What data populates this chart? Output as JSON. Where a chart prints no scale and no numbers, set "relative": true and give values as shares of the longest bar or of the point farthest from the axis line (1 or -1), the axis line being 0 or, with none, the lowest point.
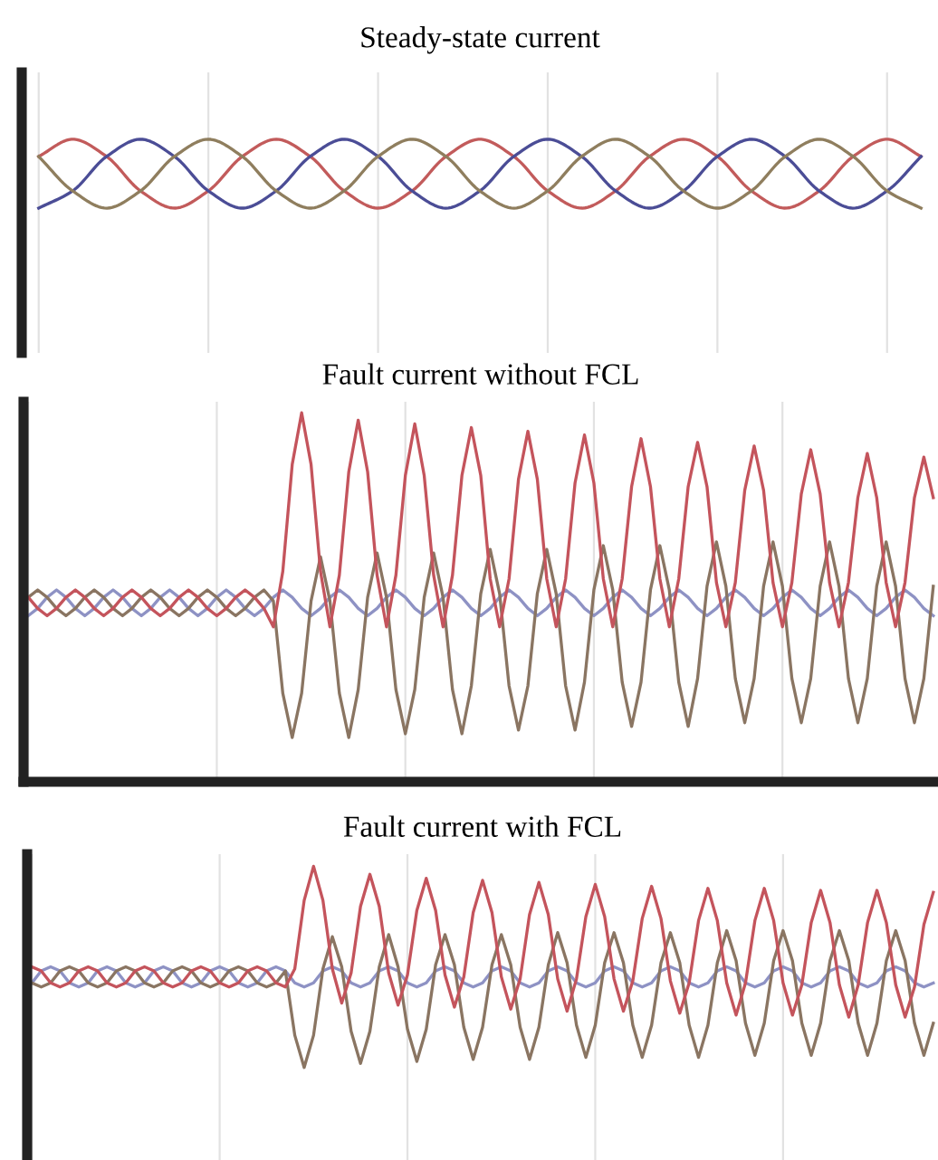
{
  "chart_data": [
    {
      "type": "line",
      "title": "Steady-state current",
      "relative": true,
      "grid": true,
      "tick_labels": false,
      "categories": [
        null,
        null,
        null,
        null,
        null,
        null,
        null,
        null,
        null,
        null,
        null,
        null,
        null,
        null,
        null,
        null,
        null,
        null,
        null,
        null,
        null,
        null,
        null,
        null,
        null,
        null,
        null
      ],
      "series": [
        {
          "color": "#c25b5b",
          "values": [
            0.75,
            1,
            0.75,
            0.25,
            0,
            0.25,
            0.75,
            1,
            0.75,
            0.25,
            0,
            0.25,
            0.75,
            1,
            0.75,
            0.25,
            0,
            0.25,
            0.75,
            1,
            0.75,
            0.25,
            0,
            0.25,
            0.75,
            1,
            0.75
          ]
        },
        {
          "color": "#4b4d96",
          "values": [
            0,
            0.25,
            0.75,
            1,
            0.75,
            0.25,
            0,
            0.25,
            0.75,
            1,
            0.75,
            0.25,
            0,
            0.25,
            0.75,
            1,
            0.75,
            0.25,
            0,
            0.25,
            0.75,
            1,
            0.75,
            0.25,
            0,
            0.25,
            0.75
          ]
        },
        {
          "color": "#8f7e5e",
          "values": [
            0.75,
            0.25,
            0,
            0.25,
            0.75,
            1,
            0.75,
            0.25,
            0,
            0.25,
            0.75,
            1,
            0.75,
            0.25,
            0,
            0.25,
            0.75,
            1,
            0.75,
            0.25,
            0,
            0.25,
            0.75,
            1,
            0.75,
            0.25,
            0
          ]
        }
      ]
    },
    {
      "type": "line",
      "title": "Fault current without FCL",
      "relative": true,
      "grid": true,
      "tick_labels": false,
      "categories": [
        null,
        null,
        null,
        null,
        null,
        null,
        null,
        null,
        null,
        null,
        null,
        null,
        null,
        null,
        null,
        null,
        null,
        null,
        null,
        null,
        null,
        null,
        null,
        null,
        null,
        null,
        null,
        null,
        null,
        null,
        null,
        null,
        null,
        null,
        null,
        null,
        null,
        null,
        null,
        null,
        null,
        null,
        null,
        null,
        null,
        null,
        null,
        null,
        null,
        null,
        null,
        null,
        null,
        null,
        null,
        null,
        null,
        null,
        null,
        null,
        null,
        null,
        null,
        null,
        null,
        null,
        null,
        null,
        null,
        null,
        null,
        null,
        null,
        null,
        null,
        null,
        null,
        null,
        null,
        null,
        null,
        null,
        null,
        null,
        null,
        null,
        null,
        null,
        null,
        null,
        null,
        null,
        null,
        null,
        null,
        null,
        null
      ],
      "series": [
        {
          "color": "#8e92c4",
          "values": [
            0.45,
            0.47,
            0.5,
            0.52,
            0.5,
            0.47,
            0.45,
            0.47,
            0.5,
            0.52,
            0.5,
            0.47,
            0.45,
            0.47,
            0.5,
            0.52,
            0.5,
            0.47,
            0.45,
            0.47,
            0.5,
            0.52,
            0.5,
            0.47,
            0.45,
            0.47,
            0.5,
            0.52,
            0.5,
            0.47,
            0.45,
            0.47,
            0.5,
            0.52,
            0.5,
            0.47,
            0.45,
            0.47,
            0.5,
            0.52,
            0.5,
            0.47,
            0.45,
            0.47,
            0.5,
            0.52,
            0.5,
            0.47,
            0.45,
            0.47,
            0.5,
            0.52,
            0.5,
            0.47,
            0.45,
            0.47,
            0.5,
            0.52,
            0.5,
            0.47,
            0.45,
            0.47,
            0.5,
            0.52,
            0.5,
            0.47,
            0.45,
            0.47,
            0.5,
            0.52,
            0.5,
            0.47,
            0.45,
            0.47,
            0.5,
            0.52,
            0.5,
            0.47,
            0.45,
            0.47,
            0.5,
            0.52,
            0.5,
            0.47,
            0.45,
            0.47,
            0.5,
            0.52,
            0.5,
            0.47,
            0.45,
            0.47,
            0.5,
            0.52,
            0.5,
            0.47,
            0.45
          ]
        },
        {
          "color": "#8a7562",
          "values": [
            0.5,
            0.52,
            0.5,
            0.47,
            0.45,
            0.47,
            0.5,
            0.52,
            0.5,
            0.47,
            0.45,
            0.47,
            0.5,
            0.52,
            0.5,
            0.47,
            0.45,
            0.47,
            0.5,
            0.52,
            0.5,
            0.47,
            0.45,
            0.47,
            0.5,
            0.52,
            0.49,
            0.24,
            0.12,
            0.24,
            0.49,
            0.61,
            0.49,
            0.24,
            0.12,
            0.25,
            0.5,
            0.62,
            0.5,
            0.25,
            0.13,
            0.25,
            0.5,
            0.62,
            0.5,
            0.25,
            0.13,
            0.26,
            0.51,
            0.63,
            0.51,
            0.26,
            0.14,
            0.26,
            0.51,
            0.63,
            0.51,
            0.26,
            0.14,
            0.27,
            0.52,
            0.64,
            0.52,
            0.27,
            0.15,
            0.27,
            0.52,
            0.64,
            0.52,
            0.27,
            0.15,
            0.28,
            0.53,
            0.65,
            0.53,
            0.28,
            0.16,
            0.28,
            0.53,
            0.65,
            0.53,
            0.28,
            0.16,
            0.28,
            0.53,
            0.65,
            0.53,
            0.28,
            0.16,
            0.28,
            0.53,
            0.65,
            0.53,
            0.28,
            0.16,
            0.28,
            0.53
          ]
        },
        {
          "color": "#c4545c",
          "values": [
            0.5,
            0.47,
            0.45,
            0.47,
            0.5,
            0.52,
            0.5,
            0.47,
            0.45,
            0.47,
            0.5,
            0.52,
            0.5,
            0.47,
            0.45,
            0.47,
            0.5,
            0.52,
            0.5,
            0.47,
            0.45,
            0.47,
            0.5,
            0.52,
            0.5,
            0.47,
            0.42,
            0.57,
            0.86,
            1.0,
            0.86,
            0.57,
            0.42,
            0.56,
            0.84,
            0.98,
            0.84,
            0.56,
            0.42,
            0.56,
            0.83,
            0.97,
            0.83,
            0.56,
            0.42,
            0.56,
            0.83,
            0.96,
            0.83,
            0.55,
            0.42,
            0.55,
            0.82,
            0.95,
            0.82,
            0.55,
            0.42,
            0.55,
            0.81,
            0.94,
            0.81,
            0.55,
            0.42,
            0.55,
            0.8,
            0.93,
            0.8,
            0.55,
            0.42,
            0.55,
            0.8,
            0.92,
            0.8,
            0.54,
            0.42,
            0.54,
            0.79,
            0.91,
            0.79,
            0.54,
            0.42,
            0.54,
            0.78,
            0.9,
            0.78,
            0.54,
            0.42,
            0.54,
            0.77,
            0.89,
            0.77,
            0.54,
            0.42,
            0.54,
            0.77,
            0.88,
            0.77
          ]
        }
      ]
    },
    {
      "type": "line",
      "title": "Fault current with FCL",
      "relative": true,
      "grid": true,
      "tick_labels": false,
      "categories": [
        null,
        null,
        null,
        null,
        null,
        null,
        null,
        null,
        null,
        null,
        null,
        null,
        null,
        null,
        null,
        null,
        null,
        null,
        null,
        null,
        null,
        null,
        null,
        null,
        null,
        null,
        null,
        null,
        null,
        null,
        null,
        null,
        null,
        null,
        null,
        null,
        null,
        null,
        null,
        null,
        null,
        null,
        null,
        null,
        null,
        null,
        null,
        null,
        null,
        null,
        null,
        null,
        null,
        null,
        null,
        null,
        null,
        null,
        null,
        null,
        null,
        null,
        null,
        null,
        null,
        null,
        null,
        null,
        null,
        null,
        null,
        null,
        null,
        null,
        null,
        null,
        null,
        null,
        null,
        null,
        null,
        null,
        null,
        null,
        null,
        null,
        null,
        null,
        null,
        null,
        null,
        null,
        null,
        null,
        null,
        null,
        null
      ],
      "series": [
        {
          "color": "#8e92c4",
          "values": [
            0.42,
            0.48,
            0.5,
            0.48,
            0.42,
            0.4,
            0.42,
            0.48,
            0.5,
            0.48,
            0.42,
            0.4,
            0.42,
            0.48,
            0.5,
            0.48,
            0.42,
            0.4,
            0.42,
            0.48,
            0.5,
            0.48,
            0.42,
            0.4,
            0.42,
            0.48,
            0.5,
            0.48,
            0.42,
            0.4,
            0.42,
            0.48,
            0.5,
            0.48,
            0.42,
            0.4,
            0.42,
            0.48,
            0.5,
            0.48,
            0.42,
            0.4,
            0.42,
            0.48,
            0.5,
            0.48,
            0.42,
            0.4,
            0.42,
            0.48,
            0.5,
            0.48,
            0.42,
            0.4,
            0.42,
            0.48,
            0.5,
            0.48,
            0.42,
            0.4,
            0.42,
            0.48,
            0.5,
            0.48,
            0.42,
            0.4,
            0.42,
            0.48,
            0.5,
            0.48,
            0.42,
            0.4,
            0.42,
            0.48,
            0.5,
            0.48,
            0.42,
            0.4,
            0.42,
            0.48,
            0.5,
            0.48,
            0.42,
            0.4,
            0.42,
            0.48,
            0.5,
            0.48,
            0.42,
            0.4,
            0.42,
            0.48,
            0.5,
            0.48,
            0.42,
            0.4,
            0.42
          ]
        },
        {
          "color": "#8a7562",
          "values": [
            0.42,
            0.4,
            0.42,
            0.48,
            0.5,
            0.48,
            0.42,
            0.4,
            0.42,
            0.48,
            0.5,
            0.48,
            0.42,
            0.4,
            0.42,
            0.48,
            0.5,
            0.48,
            0.42,
            0.4,
            0.42,
            0.48,
            0.5,
            0.48,
            0.42,
            0.4,
            0.42,
            0.48,
            0.16,
            0.0,
            0.16,
            0.49,
            0.65,
            0.5,
            0.18,
            0.02,
            0.18,
            0.5,
            0.66,
            0.5,
            0.19,
            0.03,
            0.19,
            0.51,
            0.66,
            0.51,
            0.2,
            0.04,
            0.2,
            0.51,
            0.66,
            0.51,
            0.2,
            0.04,
            0.2,
            0.51,
            0.67,
            0.52,
            0.21,
            0.05,
            0.21,
            0.52,
            0.67,
            0.52,
            0.21,
            0.05,
            0.21,
            0.52,
            0.67,
            0.52,
            0.21,
            0.05,
            0.21,
            0.52,
            0.68,
            0.53,
            0.22,
            0.06,
            0.22,
            0.53,
            0.68,
            0.53,
            0.22,
            0.06,
            0.22,
            0.53,
            0.68,
            0.53,
            0.22,
            0.06,
            0.22,
            0.53,
            0.68,
            0.53,
            0.22,
            0.06,
            0.22
          ]
        },
        {
          "color": "#c4545c",
          "values": [
            0.5,
            0.48,
            0.42,
            0.4,
            0.42,
            0.48,
            0.5,
            0.48,
            0.42,
            0.4,
            0.42,
            0.48,
            0.5,
            0.48,
            0.42,
            0.4,
            0.42,
            0.48,
            0.5,
            0.48,
            0.42,
            0.4,
            0.42,
            0.48,
            0.5,
            0.48,
            0.42,
            0.4,
            0.49,
            0.83,
            1.0,
            0.83,
            0.49,
            0.32,
            0.47,
            0.8,
            0.96,
            0.8,
            0.47,
            0.31,
            0.46,
            0.78,
            0.94,
            0.78,
            0.46,
            0.3,
            0.45,
            0.77,
            0.93,
            0.77,
            0.45,
            0.29,
            0.44,
            0.76,
            0.92,
            0.76,
            0.44,
            0.28,
            0.44,
            0.75,
            0.91,
            0.75,
            0.44,
            0.28,
            0.43,
            0.74,
            0.9,
            0.74,
            0.43,
            0.27,
            0.42,
            0.73,
            0.89,
            0.73,
            0.42,
            0.26,
            0.42,
            0.73,
            0.89,
            0.73,
            0.42,
            0.26,
            0.41,
            0.72,
            0.88,
            0.72,
            0.41,
            0.25,
            0.41,
            0.72,
            0.88,
            0.72,
            0.41,
            0.25,
            0.4,
            0.71,
            0.87
          ]
        }
      ]
    }
  ]
}
